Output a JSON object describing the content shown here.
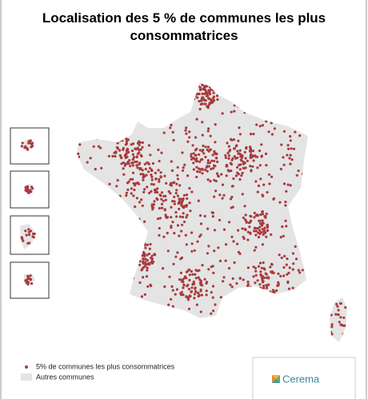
{
  "title": "Localisation des 5 % de communes les plus consommatrices",
  "legend": [
    "5% de communes les plus consommatrices",
    "Autres communes"
  ],
  "logo": "Cerema"
}
